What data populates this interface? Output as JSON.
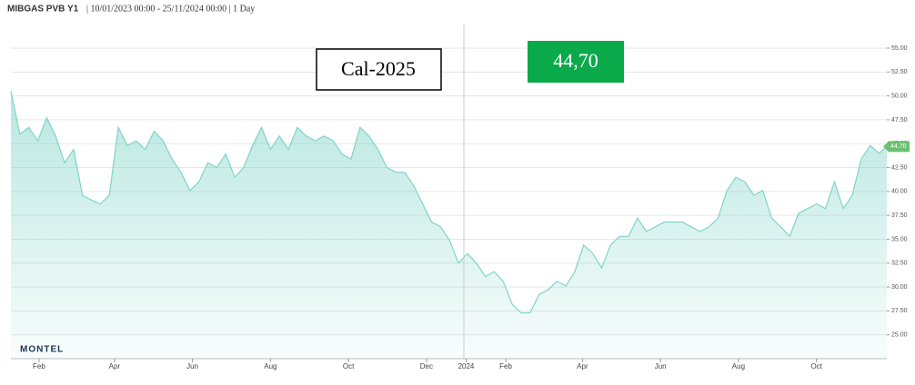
{
  "chart_data": {
    "type": "area",
    "title": "MIBGAS PVB Y1",
    "subtitle": "| 10/01/2023 00:00 - 25/11/2024 00:00 | 1 Day",
    "annotations": [
      "Cal-2025",
      "44,70"
    ],
    "logo": "MONTEL",
    "last_value": {
      "value": 44.7,
      "label": "44.70"
    },
    "color": "#7fd4c7",
    "grid": true,
    "xlim": [
      "2023-01-10",
      "2024-11-25"
    ],
    "xticks": [
      {
        "value": "2023-02-01",
        "label": "Feb"
      },
      {
        "value": "2023-04-01",
        "label": "Apr"
      },
      {
        "value": "2023-06-01",
        "label": "Jun"
      },
      {
        "value": "2023-08-01",
        "label": "Aug"
      },
      {
        "value": "2023-10-01",
        "label": "Oct"
      },
      {
        "value": "2023-12-01",
        "label": "Dec"
      },
      {
        "value": "2024-01-01",
        "label": "2024"
      },
      {
        "value": "2024-02-01",
        "label": "Feb"
      },
      {
        "value": "2024-04-01",
        "label": "Apr"
      },
      {
        "value": "2024-06-01",
        "label": "Jun"
      },
      {
        "value": "2024-08-01",
        "label": "Aug"
      },
      {
        "value": "2024-10-01",
        "label": "Oct"
      }
    ],
    "ylim": [
      22.5,
      57.5
    ],
    "yticks": [
      {
        "value": 25,
        "label": "25.00"
      },
      {
        "value": 27.5,
        "label": "27.50"
      },
      {
        "value": 30,
        "label": "30.00"
      },
      {
        "value": 32.5,
        "label": "32.50"
      },
      {
        "value": 35,
        "label": "35.00"
      },
      {
        "value": 37.5,
        "label": "37.50"
      },
      {
        "value": 40,
        "label": "40.00"
      },
      {
        "value": 42.5,
        "label": "42.50"
      },
      {
        "value": 45,
        "label": "45.00"
      },
      {
        "value": 47.5,
        "label": "47.50"
      },
      {
        "value": 50,
        "label": "50.00"
      },
      {
        "value": 52.5,
        "label": "52.50"
      },
      {
        "value": 55,
        "label": "55.00"
      }
    ],
    "x": [
      "2023-01-10",
      "2023-01-17",
      "2023-01-24",
      "2023-01-31",
      "2023-02-07",
      "2023-02-14",
      "2023-02-21",
      "2023-02-28",
      "2023-03-07",
      "2023-03-14",
      "2023-03-21",
      "2023-03-28",
      "2023-04-04",
      "2023-04-11",
      "2023-04-18",
      "2023-04-25",
      "2023-05-02",
      "2023-05-09",
      "2023-05-16",
      "2023-05-23",
      "2023-05-30",
      "2023-06-06",
      "2023-06-13",
      "2023-06-20",
      "2023-06-27",
      "2023-07-04",
      "2023-07-11",
      "2023-07-18",
      "2023-07-25",
      "2023-08-01",
      "2023-08-08",
      "2023-08-15",
      "2023-08-22",
      "2023-08-29",
      "2023-09-05",
      "2023-09-12",
      "2023-09-19",
      "2023-09-26",
      "2023-10-03",
      "2023-10-10",
      "2023-10-17",
      "2023-10-24",
      "2023-10-31",
      "2023-11-07",
      "2023-11-14",
      "2023-11-21",
      "2023-11-28",
      "2023-12-05",
      "2023-12-12",
      "2023-12-19",
      "2023-12-26",
      "2024-01-02",
      "2024-01-09",
      "2024-01-16",
      "2024-01-23",
      "2024-01-30",
      "2024-02-06",
      "2024-02-13",
      "2024-02-20",
      "2024-02-27",
      "2024-03-05",
      "2024-03-12",
      "2024-03-19",
      "2024-03-26",
      "2024-04-02",
      "2024-04-09",
      "2024-04-16",
      "2024-04-23",
      "2024-04-30",
      "2024-05-07",
      "2024-05-14",
      "2024-05-21",
      "2024-05-28",
      "2024-06-04",
      "2024-06-11",
      "2024-06-18",
      "2024-06-25",
      "2024-07-02",
      "2024-07-09",
      "2024-07-16",
      "2024-07-23",
      "2024-07-30",
      "2024-08-06",
      "2024-08-13",
      "2024-08-20",
      "2024-08-27",
      "2024-09-03",
      "2024-09-10",
      "2024-09-17",
      "2024-09-24",
      "2024-10-01",
      "2024-10-08",
      "2024-10-15",
      "2024-10-22",
      "2024-10-29",
      "2024-11-05",
      "2024-11-12",
      "2024-11-19",
      "2024-11-25"
    ],
    "values": [
      50.5,
      46.0,
      46.7,
      45.3,
      47.7,
      45.8,
      43,
      44.4,
      39.6,
      39.1,
      38.7,
      39.6,
      46.7,
      44.8,
      45.3,
      44.4,
      46.3,
      45.3,
      43.4,
      42,
      40.1,
      41,
      43,
      42.5,
      43.9,
      41.5,
      42.5,
      44.8,
      46.7,
      44.4,
      45.8,
      44.4,
      46.7,
      45.8,
      45.3,
      45.8,
      45.3,
      43.9,
      43.4,
      46.7,
      45.8,
      44.4,
      42.5,
      42,
      42,
      40.6,
      38.7,
      36.8,
      36.3,
      34.9,
      32.5,
      33.5,
      32.5,
      31.1,
      31.6,
      30.6,
      28.2,
      27.3,
      27.3,
      29.2,
      29.7,
      30.6,
      30.1,
      31.6,
      34.4,
      33.5,
      32,
      34.4,
      35.3,
      35.3,
      37.2,
      35.8,
      36.3,
      36.8,
      36.8,
      36.8,
      36.3,
      35.8,
      36.3,
      37.2,
      40.1,
      41.5,
      41,
      39.6,
      40.1,
      37.2,
      36.3,
      35.3,
      37.7,
      38.2,
      38.7,
      38.2,
      41,
      38.2,
      39.6,
      43.4,
      44.8,
      44.0,
      44.7
    ]
  }
}
